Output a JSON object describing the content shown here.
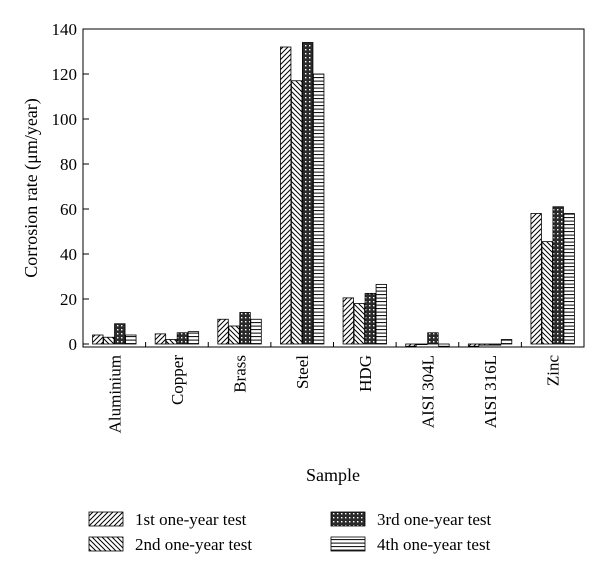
{
  "chart_data": {
    "type": "bar",
    "xlabel": "Sample",
    "ylabel": "Corrosion rate (μm/year)",
    "ylim": [
      -1,
      140
    ],
    "yticks": [
      0,
      20,
      40,
      60,
      80,
      100,
      120,
      140
    ],
    "categories": [
      "Aluminium",
      "Copper",
      "Brass",
      "Steel",
      "HDG",
      "AISI 304L",
      "AISI 316L",
      "Zinc"
    ],
    "series": [
      {
        "name": "1st one-year test",
        "pattern": "diag-right",
        "values": [
          4,
          4.5,
          11,
          132,
          20.5,
          -1,
          -1,
          58
        ]
      },
      {
        "name": "2nd one-year test",
        "pattern": "diag-left",
        "values": [
          3,
          2,
          8,
          117,
          18,
          0,
          -0.5,
          45.5
        ]
      },
      {
        "name": "3rd one-year test",
        "pattern": "dots",
        "values": [
          9,
          5,
          14,
          134,
          22.5,
          5,
          -0.5,
          61
        ]
      },
      {
        "name": "4th one-year test",
        "pattern": "horizontal",
        "values": [
          4,
          5.5,
          11,
          120,
          26.5,
          -1,
          2,
          58
        ]
      }
    ],
    "legend_position": "bottom",
    "grid": false
  }
}
